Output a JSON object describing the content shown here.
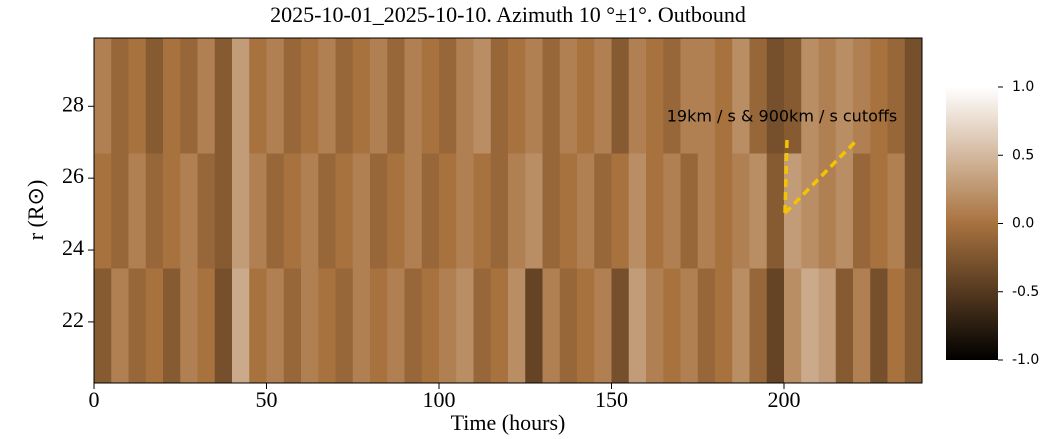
{
  "chart_data": {
    "type": "heatmap",
    "title": "2025-10-01_2025-10-10. Azimuth 10  °±1°. Outbound",
    "xlabel": "Time (hours)",
    "ylabel": "r (R⊙)",
    "annotation": "19km / s & 900km / s cutoffs",
    "annotation_color": "#f5c400",
    "xlim": [
      0,
      240
    ],
    "ylim": [
      20.3,
      29.9
    ],
    "xticks": [
      0,
      50,
      100,
      150,
      200
    ],
    "yticks": [
      22,
      24,
      26,
      28
    ],
    "x_bins": [
      0,
      5,
      10,
      15,
      20,
      25,
      30,
      35,
      40,
      45,
      50,
      55,
      60,
      65,
      70,
      75,
      80,
      85,
      90,
      95,
      100,
      105,
      110,
      115,
      120,
      125,
      130,
      135,
      140,
      145,
      150,
      155,
      160,
      165,
      170,
      175,
      180,
      185,
      190,
      195,
      200,
      205,
      210,
      215,
      220,
      225,
      230,
      235,
      240
    ],
    "y_bins": [
      20.3,
      23.5,
      26.7,
      29.9
    ],
    "z": [
      [
        -0.2,
        0.1,
        -0.1,
        0.0,
        -0.2,
        0.1,
        0.0,
        -0.3,
        0.4,
        0.0,
        0.1,
        -0.1,
        0.1,
        0.0,
        -0.1,
        0.1,
        0.0,
        0.1,
        -0.1,
        0.0,
        0.1,
        0.2,
        -0.1,
        0.0,
        0.2,
        -0.4,
        0.1,
        -0.1,
        0.0,
        0.1,
        -0.3,
        0.3,
        0.1,
        0.0,
        0.1,
        -0.1,
        0.0,
        0.2,
        -0.1,
        -0.4,
        0.2,
        0.4,
        0.3,
        -0.2,
        0.1,
        -0.3,
        0.0,
        -0.2
      ],
      [
        0.0,
        -0.1,
        0.1,
        -0.1,
        0.0,
        0.1,
        -0.1,
        -0.2,
        0.3,
        0.1,
        -0.1,
        0.0,
        0.1,
        -0.1,
        0.0,
        0.1,
        -0.1,
        0.0,
        0.1,
        -0.1,
        0.0,
        0.1,
        0.0,
        -0.1,
        0.1,
        0.2,
        -0.1,
        0.0,
        0.1,
        -0.1,
        0.0,
        0.2,
        0.0,
        0.1,
        -0.1,
        0.1,
        0.0,
        0.1,
        0.2,
        -0.2,
        0.3,
        0.2,
        0.1,
        0.2,
        -0.1,
        0.0,
        0.1,
        -0.3
      ],
      [
        0.1,
        -0.1,
        0.0,
        -0.2,
        0.0,
        -0.1,
        0.1,
        -0.2,
        0.3,
        0.0,
        0.1,
        -0.1,
        0.0,
        0.1,
        -0.1,
        0.0,
        0.1,
        -0.1,
        0.1,
        0.0,
        -0.1,
        0.1,
        0.2,
        -0.1,
        0.0,
        0.1,
        -0.1,
        0.1,
        0.0,
        0.1,
        -0.2,
        0.1,
        0.0,
        -0.1,
        0.1,
        0.1,
        0.0,
        0.2,
        -0.1,
        -0.3,
        -0.2,
        0.2,
        0.1,
        0.2,
        0.1,
        0.0,
        -0.1,
        -0.3
      ]
    ],
    "zlim": [
      -1,
      1
    ],
    "colorbar_ticks": [
      {
        "value": -1,
        "label": "-1.0"
      },
      {
        "value": -0.5,
        "label": "-0.5"
      },
      {
        "value": 0,
        "label": "0.0"
      },
      {
        "value": 0.5,
        "label": "0.5"
      },
      {
        "value": 1,
        "label": "1.0"
      }
    ]
  }
}
